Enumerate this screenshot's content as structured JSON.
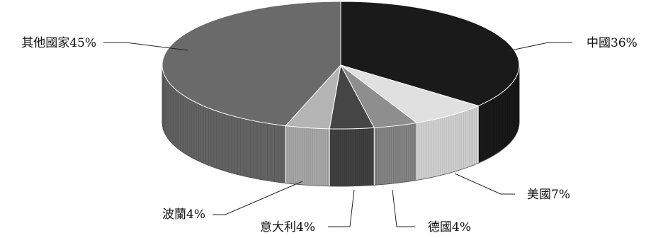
{
  "chart_data": {
    "type": "pie",
    "title": "",
    "slices": [
      {
        "label": "中國36%",
        "value": 36,
        "color": "#1a1a1a"
      },
      {
        "label": "美國7%",
        "value": 7,
        "color": "#e0e0e0"
      },
      {
        "label": "德國4%",
        "value": 4,
        "color": "#8e8e8e"
      },
      {
        "label": "意大利4%",
        "value": 4,
        "color": "#454545"
      },
      {
        "label": "波蘭4%",
        "value": 4,
        "color": "#b4b4b4"
      },
      {
        "label": "其他國家45%",
        "value": 45,
        "color": "#6a6a6a"
      }
    ],
    "legend": "none",
    "style": "3d"
  }
}
